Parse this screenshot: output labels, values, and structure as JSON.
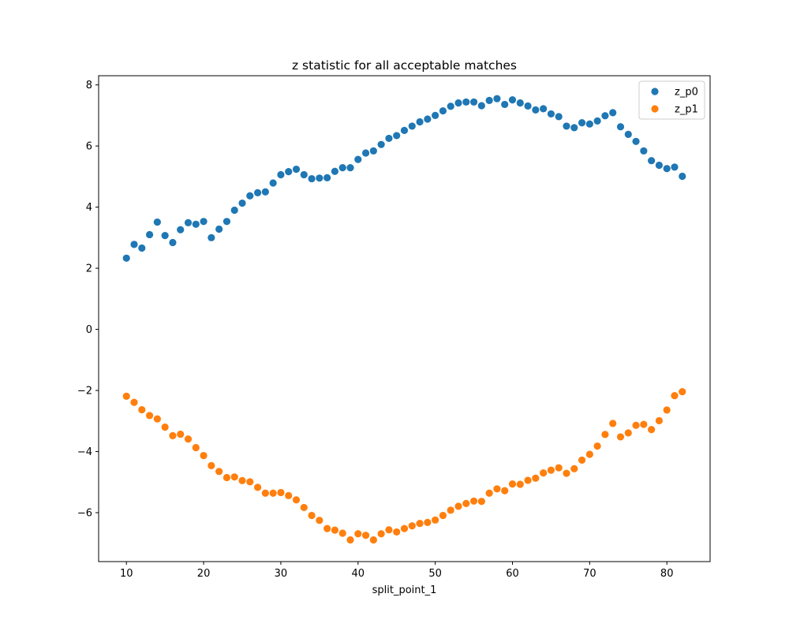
{
  "chart_data": {
    "type": "scatter",
    "title": "z statistic for all acceptable matches",
    "xlabel": "split_point_1",
    "ylabel": "",
    "xlim": [
      6.4,
      85.6
    ],
    "ylim": [
      -7.6,
      8.3
    ],
    "xticks": [
      10,
      20,
      30,
      40,
      50,
      60,
      70,
      80
    ],
    "yticks": [
      -6,
      -4,
      -2,
      0,
      2,
      4,
      6,
      8
    ],
    "grid": false,
    "legend_position": "top-right",
    "x": [
      10,
      11,
      12,
      13,
      14,
      15,
      16,
      17,
      18,
      19,
      20,
      21,
      22,
      23,
      24,
      25,
      26,
      27,
      28,
      29,
      30,
      31,
      32,
      33,
      34,
      35,
      36,
      37,
      38,
      39,
      40,
      41,
      42,
      43,
      44,
      45,
      46,
      47,
      48,
      49,
      50,
      51,
      52,
      53,
      54,
      55,
      56,
      57,
      58,
      59,
      60,
      61,
      62,
      63,
      64,
      65,
      66,
      67,
      68,
      69,
      70,
      71,
      72,
      73,
      74,
      75,
      76,
      77,
      78,
      79,
      80,
      81,
      82
    ],
    "series": [
      {
        "name": "z_p0",
        "color": "#1f77b4",
        "values": [
          2.33,
          2.78,
          2.66,
          3.1,
          3.51,
          3.07,
          2.84,
          3.26,
          3.49,
          3.44,
          3.53,
          3.0,
          3.28,
          3.53,
          3.9,
          4.13,
          4.37,
          4.47,
          4.5,
          4.79,
          5.06,
          5.16,
          5.24,
          5.06,
          4.93,
          4.95,
          4.96,
          5.17,
          5.29,
          5.29,
          5.56,
          5.77,
          5.84,
          6.05,
          6.25,
          6.34,
          6.51,
          6.65,
          6.79,
          6.88,
          7.0,
          7.15,
          7.3,
          7.41,
          7.44,
          7.44,
          7.32,
          7.49,
          7.55,
          7.36,
          7.51,
          7.41,
          7.31,
          7.18,
          7.22,
          7.05,
          6.96,
          6.65,
          6.6,
          6.76,
          6.72,
          6.82,
          6.99,
          7.09,
          6.63,
          6.38,
          6.15,
          5.84,
          5.52,
          5.37,
          5.26,
          5.31,
          5.01
        ]
      },
      {
        "name": "z_p1",
        "color": "#ff7f0e",
        "values": [
          -2.19,
          -2.39,
          -2.63,
          -2.82,
          -2.93,
          -3.2,
          -3.48,
          -3.43,
          -3.59,
          -3.87,
          -4.13,
          -4.46,
          -4.65,
          -4.85,
          -4.83,
          -4.95,
          -4.99,
          -5.17,
          -5.36,
          -5.36,
          -5.34,
          -5.44,
          -5.58,
          -5.83,
          -6.09,
          -6.25,
          -6.52,
          -6.57,
          -6.67,
          -6.89,
          -6.69,
          -6.74,
          -6.89,
          -6.69,
          -6.56,
          -6.63,
          -6.52,
          -6.43,
          -6.35,
          -6.32,
          -6.24,
          -6.09,
          -5.92,
          -5.79,
          -5.7,
          -5.62,
          -5.63,
          -5.36,
          -5.22,
          -5.28,
          -5.06,
          -5.07,
          -4.94,
          -4.87,
          -4.7,
          -4.61,
          -4.53,
          -4.71,
          -4.56,
          -4.28,
          -4.09,
          -3.82,
          -3.44,
          -3.08,
          -3.52,
          -3.39,
          -3.14,
          -3.11,
          -3.28,
          -2.99,
          -2.64,
          -2.17,
          -2.04
        ]
      }
    ]
  }
}
